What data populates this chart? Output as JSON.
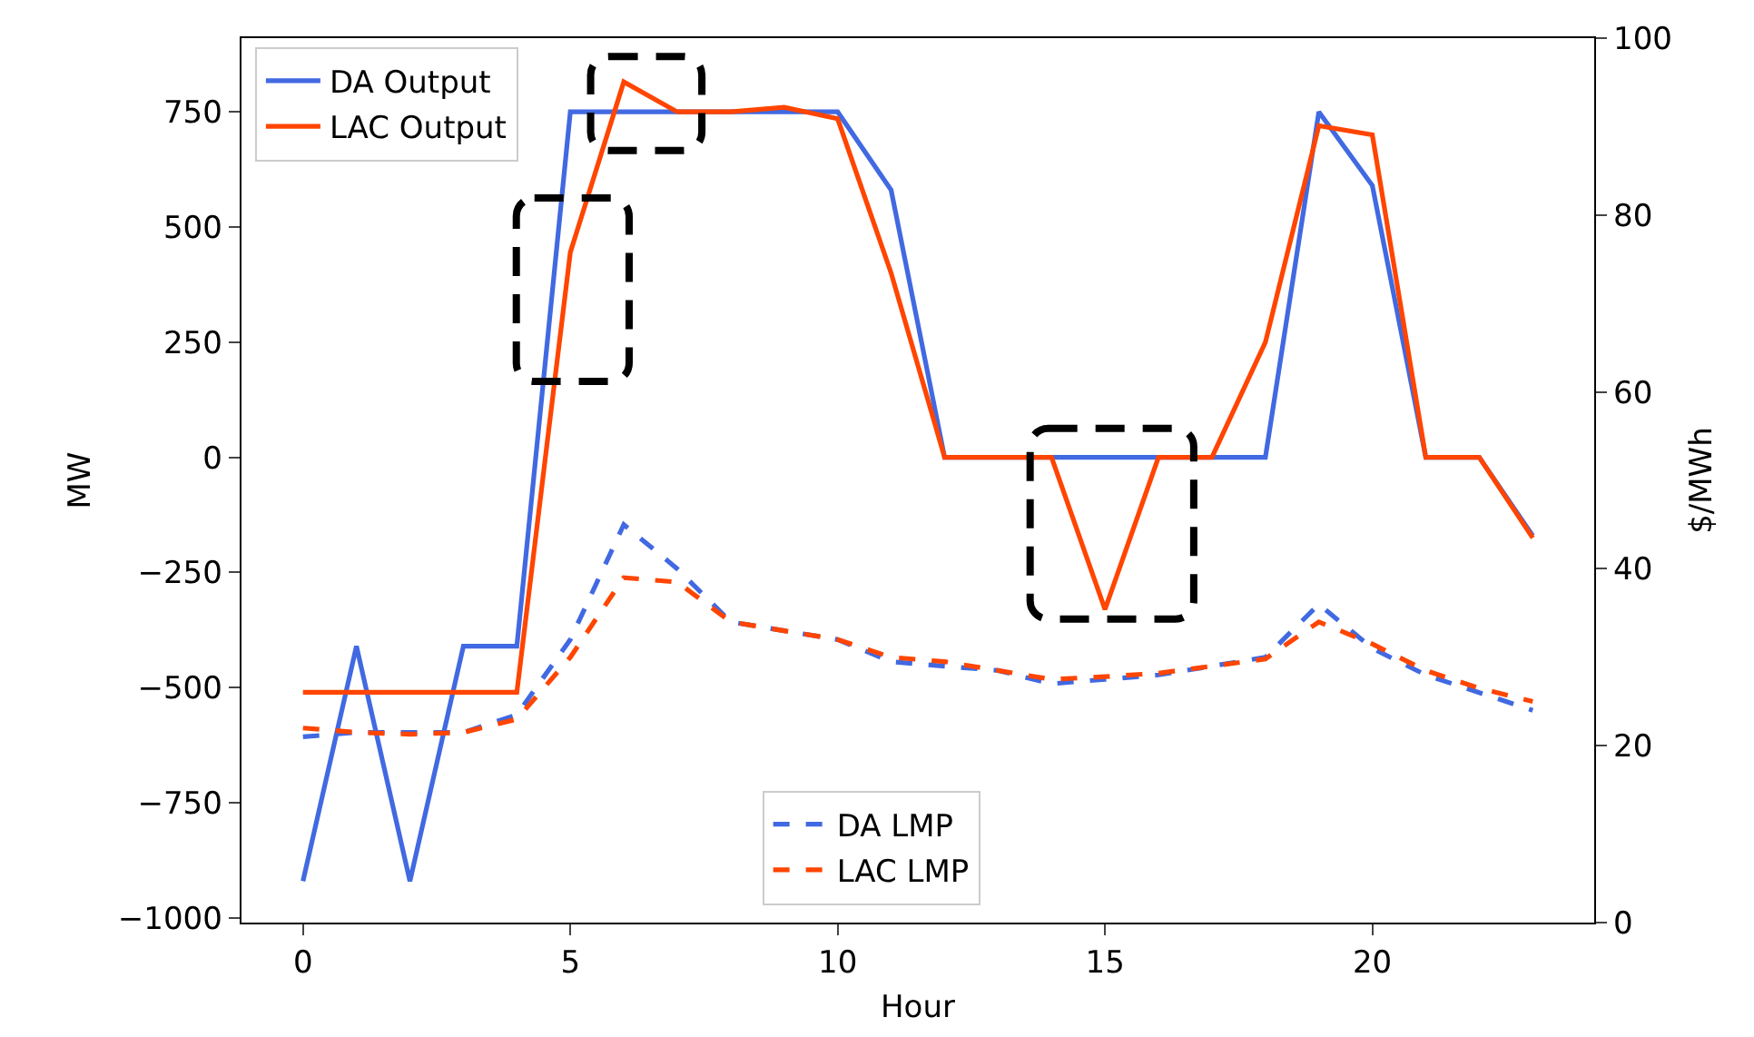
{
  "chart_data": {
    "type": "line",
    "xlabel": "Hour",
    "ylabel": "MW",
    "y2label": "$/MWh",
    "x": [
      0,
      1,
      2,
      3,
      4,
      5,
      6,
      7,
      8,
      9,
      10,
      11,
      12,
      13,
      14,
      15,
      16,
      17,
      18,
      19,
      20,
      21,
      22,
      23
    ],
    "xlim": [
      -1.15,
      24.15
    ],
    "xticks": [
      0,
      5,
      10,
      15,
      20
    ],
    "ylim": [
      -1010,
      910
    ],
    "yticks": [
      {
        "value": -1000,
        "label": "−1000"
      },
      {
        "value": -750,
        "label": "−750"
      },
      {
        "value": -500,
        "label": "−500"
      },
      {
        "value": -250,
        "label": "−250"
      },
      0,
      250,
      500,
      750
    ],
    "y2lim": [
      0,
      100
    ],
    "y2ticks": [
      0,
      20,
      40,
      60,
      80,
      100
    ],
    "legend": "top left",
    "grid": false,
    "marker": "none",
    "series": [
      {
        "name": "DA Output",
        "color": "#4169e1",
        "line_style": "solid",
        "values": [
          -920,
          -410,
          -920,
          -410,
          -410,
          750,
          750,
          750,
          750,
          750,
          750,
          580,
          0,
          0,
          0,
          0,
          0,
          0,
          0,
          750,
          590,
          0,
          0,
          -170
        ]
      },
      {
        "name": "LAC Output",
        "color": "#ff4500",
        "line_style": "solid",
        "values": [
          -510,
          -510,
          -510,
          -510,
          -510,
          445,
          815,
          750,
          750,
          760,
          735,
          400,
          0,
          0,
          0,
          -330,
          0,
          0,
          250,
          720,
          700,
          0,
          0,
          -175
        ]
      },
      {
        "name": "DA LMP",
        "color": "#4169e1",
        "line_style": "dashed",
        "axis": "y2",
        "values": [
          21,
          21.5,
          21.5,
          21.5,
          23.5,
          32,
          45,
          40,
          34,
          33,
          32,
          29.5,
          29,
          28.5,
          27,
          27.5,
          28,
          29,
          30,
          36,
          31,
          28,
          26,
          24
        ]
      },
      {
        "name": "LAC LMP",
        "color": "#ff4500",
        "line_style": "dashed",
        "axis": "y2",
        "values": [
          22,
          21.5,
          21.3,
          21.5,
          23,
          30,
          39,
          38.5,
          34,
          33,
          32,
          30,
          29.5,
          28.5,
          27.5,
          27.8,
          28.2,
          29,
          29.8,
          34,
          31.5,
          28.5,
          26.5,
          25
        ]
      }
    ]
  }
}
